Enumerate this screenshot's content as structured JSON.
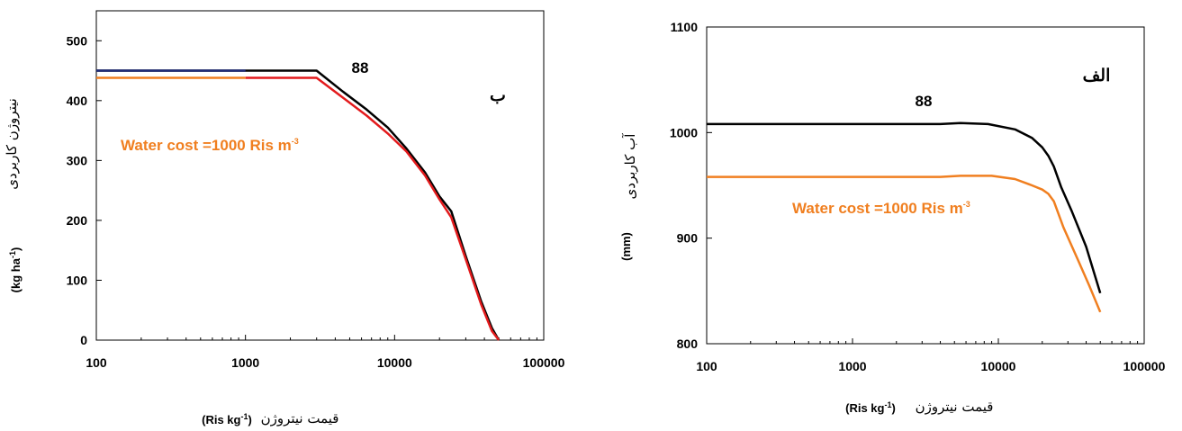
{
  "chart_data": [
    {
      "type": "line",
      "panel_letter": "ب",
      "year_label": "88",
      "xscale": "log",
      "xlim": [
        100,
        100000
      ],
      "ylim": [
        0,
        550
      ],
      "xticks": [
        "100",
        "1000",
        "10000",
        "100000"
      ],
      "yticks": [
        "0",
        "100",
        "200",
        "300",
        "400",
        "500"
      ],
      "ylabel_fa": "نیتروژن کاربردی",
      "ylabel_unit": "(kg ha",
      "ylabel_unit_sup": "-1",
      "ylabel_unit_close": ")",
      "xlabel_fa": "قیمت نیتروژن",
      "xlabel_unit": "(Ris kg",
      "xlabel_unit_sup": "-1",
      "xlabel_unit_close": ")",
      "annotation": "Water cost =1000 Ris m",
      "annotation_sup": "-3",
      "annotation_color": "#F07F20",
      "series": [
        {
          "color": "#000000",
          "points": [
            [
              100,
              450
            ],
            [
              1000,
              450
            ],
            [
              3000,
              450
            ],
            [
              4500,
              415
            ],
            [
              6500,
              385
            ],
            [
              9000,
              355
            ],
            [
              12000,
              320
            ],
            [
              16000,
              280
            ],
            [
              20000,
              240
            ],
            [
              24000,
              215
            ],
            [
              30000,
              140
            ],
            [
              38000,
              65
            ],
            [
              45000,
              20
            ],
            [
              50000,
              0
            ]
          ]
        },
        {
          "color": "#E31A1C",
          "points": [
            [
              1000,
              438
            ],
            [
              3000,
              438
            ],
            [
              4500,
              405
            ],
            [
              6500,
              375
            ],
            [
              9000,
              345
            ],
            [
              12000,
              315
            ],
            [
              16000,
              275
            ],
            [
              20000,
              235
            ],
            [
              24000,
              205
            ],
            [
              30000,
              135
            ],
            [
              38000,
              60
            ],
            [
              45000,
              15
            ],
            [
              50000,
              0
            ]
          ]
        },
        {
          "color": "#F07F20",
          "points": [
            [
              100,
              438
            ],
            [
              1000,
              438
            ]
          ]
        },
        {
          "color": "#1F2A78",
          "points": [
            [
              100,
              450
            ],
            [
              1000,
              450
            ]
          ]
        }
      ]
    },
    {
      "type": "line",
      "panel_letter": "الف",
      "year_label": "88",
      "xscale": "log",
      "xlim": [
        100,
        100000
      ],
      "ylim": [
        800,
        1100
      ],
      "xticks": [
        "100",
        "1000",
        "10000",
        "100000"
      ],
      "yticks": [
        "800",
        "900",
        "1000",
        "1100"
      ],
      "ylabel_fa": "آب کاربردی",
      "ylabel_unit": "(mm)",
      "xlabel_fa": "قیمت نیتروژن",
      "xlabel_unit": "(Ris kg",
      "xlabel_unit_sup": "-1",
      "xlabel_unit_close": ")",
      "annotation": "Water cost =1000 Ris m",
      "annotation_sup": "-3",
      "annotation_color": "#F07F20",
      "series": [
        {
          "color": "#000000",
          "points": [
            [
              100,
              1008
            ],
            [
              1000,
              1008
            ],
            [
              4000,
              1008
            ],
            [
              5500,
              1009
            ],
            [
              8500,
              1008
            ],
            [
              13000,
              1003
            ],
            [
              17000,
              995
            ],
            [
              20000,
              986
            ],
            [
              22000,
              978
            ],
            [
              24000,
              968
            ],
            [
              27000,
              948
            ],
            [
              32000,
              925
            ],
            [
              40000,
              892
            ],
            [
              50000,
              848
            ]
          ]
        },
        {
          "color": "#F07F20",
          "points": [
            [
              100,
              958
            ],
            [
              1000,
              958
            ],
            [
              4000,
              958
            ],
            [
              5500,
              959
            ],
            [
              9000,
              959
            ],
            [
              13000,
              956
            ],
            [
              17000,
              950
            ],
            [
              20000,
              946
            ],
            [
              22000,
              942
            ],
            [
              24000,
              935
            ],
            [
              28000,
              910
            ],
            [
              35000,
              880
            ],
            [
              42000,
              855
            ],
            [
              50000,
              830
            ]
          ]
        }
      ]
    }
  ]
}
